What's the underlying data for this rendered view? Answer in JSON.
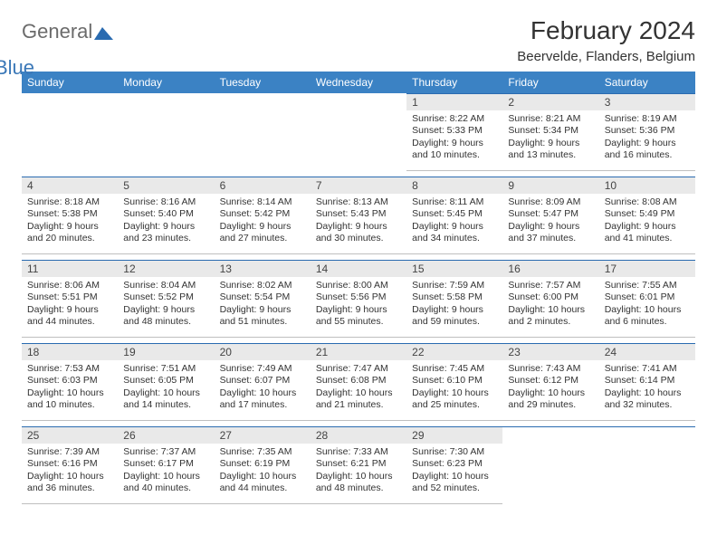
{
  "logo": {
    "word1": "General",
    "word2": "Blue"
  },
  "title": "February 2024",
  "subtitle": "Beervelde, Flanders, Belgium",
  "colors": {
    "header_bg": "#3b82c4",
    "header_text": "#ffffff",
    "cell_border_top": "#2a6bb0",
    "cell_border_bottom": "#bfbfbf",
    "daynum_bg": "#e9e9e9",
    "text": "#333333",
    "logo_gray": "#6b6b6b",
    "logo_blue": "#3b78b8"
  },
  "typography": {
    "title_fontsize": 28,
    "subtitle_fontsize": 15,
    "header_fontsize": 12,
    "body_fontsize": 10.5
  },
  "dayHeaders": [
    "Sunday",
    "Monday",
    "Tuesday",
    "Wednesday",
    "Thursday",
    "Friday",
    "Saturday"
  ],
  "weeks": [
    [
      null,
      null,
      null,
      null,
      {
        "n": "1",
        "sr": "Sunrise: 8:22 AM",
        "ss": "Sunset: 5:33 PM",
        "d1": "Daylight: 9 hours",
        "d2": "and 10 minutes."
      },
      {
        "n": "2",
        "sr": "Sunrise: 8:21 AM",
        "ss": "Sunset: 5:34 PM",
        "d1": "Daylight: 9 hours",
        "d2": "and 13 minutes."
      },
      {
        "n": "3",
        "sr": "Sunrise: 8:19 AM",
        "ss": "Sunset: 5:36 PM",
        "d1": "Daylight: 9 hours",
        "d2": "and 16 minutes."
      }
    ],
    [
      {
        "n": "4",
        "sr": "Sunrise: 8:18 AM",
        "ss": "Sunset: 5:38 PM",
        "d1": "Daylight: 9 hours",
        "d2": "and 20 minutes."
      },
      {
        "n": "5",
        "sr": "Sunrise: 8:16 AM",
        "ss": "Sunset: 5:40 PM",
        "d1": "Daylight: 9 hours",
        "d2": "and 23 minutes."
      },
      {
        "n": "6",
        "sr": "Sunrise: 8:14 AM",
        "ss": "Sunset: 5:42 PM",
        "d1": "Daylight: 9 hours",
        "d2": "and 27 minutes."
      },
      {
        "n": "7",
        "sr": "Sunrise: 8:13 AM",
        "ss": "Sunset: 5:43 PM",
        "d1": "Daylight: 9 hours",
        "d2": "and 30 minutes."
      },
      {
        "n": "8",
        "sr": "Sunrise: 8:11 AM",
        "ss": "Sunset: 5:45 PM",
        "d1": "Daylight: 9 hours",
        "d2": "and 34 minutes."
      },
      {
        "n": "9",
        "sr": "Sunrise: 8:09 AM",
        "ss": "Sunset: 5:47 PM",
        "d1": "Daylight: 9 hours",
        "d2": "and 37 minutes."
      },
      {
        "n": "10",
        "sr": "Sunrise: 8:08 AM",
        "ss": "Sunset: 5:49 PM",
        "d1": "Daylight: 9 hours",
        "d2": "and 41 minutes."
      }
    ],
    [
      {
        "n": "11",
        "sr": "Sunrise: 8:06 AM",
        "ss": "Sunset: 5:51 PM",
        "d1": "Daylight: 9 hours",
        "d2": "and 44 minutes."
      },
      {
        "n": "12",
        "sr": "Sunrise: 8:04 AM",
        "ss": "Sunset: 5:52 PM",
        "d1": "Daylight: 9 hours",
        "d2": "and 48 minutes."
      },
      {
        "n": "13",
        "sr": "Sunrise: 8:02 AM",
        "ss": "Sunset: 5:54 PM",
        "d1": "Daylight: 9 hours",
        "d2": "and 51 minutes."
      },
      {
        "n": "14",
        "sr": "Sunrise: 8:00 AM",
        "ss": "Sunset: 5:56 PM",
        "d1": "Daylight: 9 hours",
        "d2": "and 55 minutes."
      },
      {
        "n": "15",
        "sr": "Sunrise: 7:59 AM",
        "ss": "Sunset: 5:58 PM",
        "d1": "Daylight: 9 hours",
        "d2": "and 59 minutes."
      },
      {
        "n": "16",
        "sr": "Sunrise: 7:57 AM",
        "ss": "Sunset: 6:00 PM",
        "d1": "Daylight: 10 hours",
        "d2": "and 2 minutes."
      },
      {
        "n": "17",
        "sr": "Sunrise: 7:55 AM",
        "ss": "Sunset: 6:01 PM",
        "d1": "Daylight: 10 hours",
        "d2": "and 6 minutes."
      }
    ],
    [
      {
        "n": "18",
        "sr": "Sunrise: 7:53 AM",
        "ss": "Sunset: 6:03 PM",
        "d1": "Daylight: 10 hours",
        "d2": "and 10 minutes."
      },
      {
        "n": "19",
        "sr": "Sunrise: 7:51 AM",
        "ss": "Sunset: 6:05 PM",
        "d1": "Daylight: 10 hours",
        "d2": "and 14 minutes."
      },
      {
        "n": "20",
        "sr": "Sunrise: 7:49 AM",
        "ss": "Sunset: 6:07 PM",
        "d1": "Daylight: 10 hours",
        "d2": "and 17 minutes."
      },
      {
        "n": "21",
        "sr": "Sunrise: 7:47 AM",
        "ss": "Sunset: 6:08 PM",
        "d1": "Daylight: 10 hours",
        "d2": "and 21 minutes."
      },
      {
        "n": "22",
        "sr": "Sunrise: 7:45 AM",
        "ss": "Sunset: 6:10 PM",
        "d1": "Daylight: 10 hours",
        "d2": "and 25 minutes."
      },
      {
        "n": "23",
        "sr": "Sunrise: 7:43 AM",
        "ss": "Sunset: 6:12 PM",
        "d1": "Daylight: 10 hours",
        "d2": "and 29 minutes."
      },
      {
        "n": "24",
        "sr": "Sunrise: 7:41 AM",
        "ss": "Sunset: 6:14 PM",
        "d1": "Daylight: 10 hours",
        "d2": "and 32 minutes."
      }
    ],
    [
      {
        "n": "25",
        "sr": "Sunrise: 7:39 AM",
        "ss": "Sunset: 6:16 PM",
        "d1": "Daylight: 10 hours",
        "d2": "and 36 minutes."
      },
      {
        "n": "26",
        "sr": "Sunrise: 7:37 AM",
        "ss": "Sunset: 6:17 PM",
        "d1": "Daylight: 10 hours",
        "d2": "and 40 minutes."
      },
      {
        "n": "27",
        "sr": "Sunrise: 7:35 AM",
        "ss": "Sunset: 6:19 PM",
        "d1": "Daylight: 10 hours",
        "d2": "and 44 minutes."
      },
      {
        "n": "28",
        "sr": "Sunrise: 7:33 AM",
        "ss": "Sunset: 6:21 PM",
        "d1": "Daylight: 10 hours",
        "d2": "and 48 minutes."
      },
      {
        "n": "29",
        "sr": "Sunrise: 7:30 AM",
        "ss": "Sunset: 6:23 PM",
        "d1": "Daylight: 10 hours",
        "d2": "and 52 minutes."
      },
      null,
      null
    ]
  ]
}
